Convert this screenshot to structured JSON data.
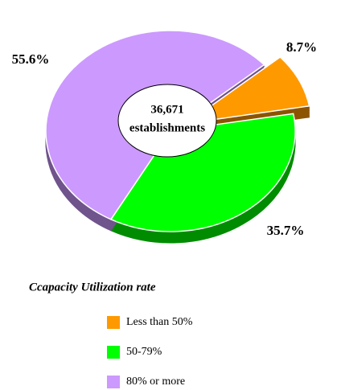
{
  "chart_data": {
    "type": "pie",
    "center_label": [
      "36,671",
      "establishments"
    ],
    "legend_title": "Ccapacity Utilization rate",
    "categories": [
      "Less than 50%",
      "50-79%",
      "80% or more"
    ],
    "values": [
      8.7,
      35.7,
      55.6
    ],
    "value_labels": [
      "8.7%",
      "35.7%",
      "55.6%"
    ],
    "colors": [
      "#ff9900",
      "#00ff00",
      "#cc99ff"
    ],
    "legend": "bottom"
  }
}
